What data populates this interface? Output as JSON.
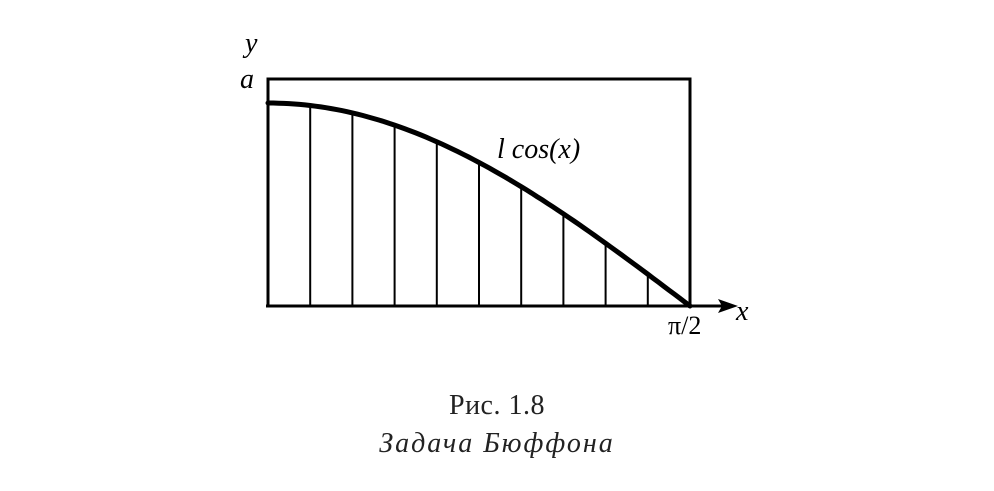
{
  "diagram": {
    "y_axis_label": "y",
    "x_axis_label": "x",
    "rect_height_label": "a",
    "x_end_label": "π/2",
    "curve_label": "l cos(x)",
    "hatch_line_count": 10,
    "stroke_color": "#000000"
  },
  "caption": {
    "number": "Рис. 1.8",
    "title": "Задача Бюффона"
  }
}
